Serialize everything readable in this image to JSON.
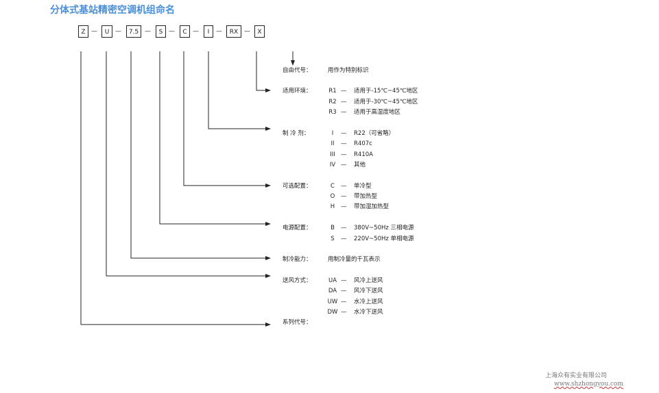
{
  "title": "分体式基站精密空调机组命名",
  "code_boxes": [
    "Z",
    "U",
    "7.5",
    "S",
    "C",
    "I",
    "RX",
    "X"
  ],
  "separator": "—",
  "sections": {
    "free": {
      "label": "自由代号：",
      "value": "用作为特别标识"
    },
    "env": {
      "label": "适用环境：",
      "items": [
        {
          "code": "R1",
          "desc": "适用于-15℃~45℃地区"
        },
        {
          "code": "R2",
          "desc": "适用于-30℃~45℃地区"
        },
        {
          "code": "R3",
          "desc": "适用于高湿度地区"
        }
      ]
    },
    "refrigerant": {
      "label": "制 冷 剂：",
      "items": [
        {
          "code": "I",
          "desc": "R22（可省略）"
        },
        {
          "code": "II",
          "desc": "R407c"
        },
        {
          "code": "III",
          "desc": "R410A"
        },
        {
          "code": "IV",
          "desc": "其他"
        }
      ]
    },
    "options": {
      "label": "可选配置：",
      "items": [
        {
          "code": "C",
          "desc": "单冷型"
        },
        {
          "code": "O",
          "desc": "带加热型"
        },
        {
          "code": "H",
          "desc": "带加湿加热型"
        }
      ]
    },
    "power": {
      "label": "电源配置：",
      "items": [
        {
          "code": "B",
          "desc": "380V~50Hz 三相电源"
        },
        {
          "code": "S",
          "desc": "220V~50Hz 单相电源"
        }
      ]
    },
    "capacity": {
      "label": "制冷能力：",
      "value": "用制冷量的千瓦表示"
    },
    "airflow": {
      "label": "送风方式：",
      "items": [
        {
          "code": "UA",
          "desc": "风冷上送风"
        },
        {
          "code": "DA",
          "desc": "风冷下送风"
        },
        {
          "code": "UW",
          "desc": "水冷上送风"
        },
        {
          "code": "DW",
          "desc": "水冷下送风"
        }
      ]
    },
    "series": {
      "label": "系列代号："
    }
  },
  "footer": {
    "company": "上海众有实业有限公司",
    "url": "www.shzhongyou.com"
  },
  "colors": {
    "title": "#4a8fd8",
    "lines": "#222222"
  }
}
